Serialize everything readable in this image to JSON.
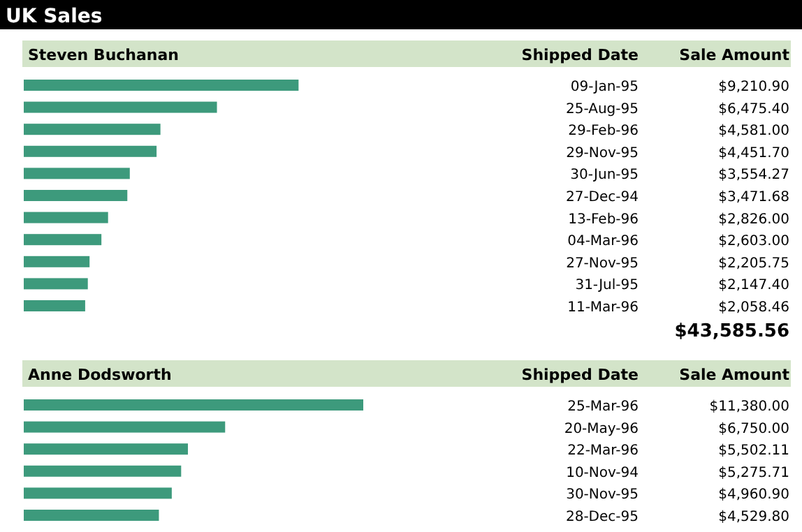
{
  "chart_data": [
    {
      "type": "bar",
      "orientation": "horizontal",
      "title": "UK Sales",
      "subtitle": "Steven Buchanan",
      "ylabel": "Shipped Date",
      "xlabel": "Sale Amount",
      "color": "#3d9a7c",
      "data_labels": false,
      "categories": [
        "09-Jan-95",
        "25-Aug-95",
        "29-Feb-96",
        "29-Nov-95",
        "30-Jun-95",
        "27-Dec-94",
        "13-Feb-96",
        "04-Mar-96",
        "27-Nov-95",
        "31-Jul-95",
        "11-Mar-96"
      ],
      "values": [
        9210.9,
        6475.4,
        4581.0,
        4451.7,
        3554.27,
        3471.68,
        2826.0,
        2603.0,
        2205.75,
        2147.4,
        2058.46
      ],
      "value_labels": [
        "$9,210.90",
        "$6,475.40",
        "$4,581.00",
        "$4,451.70",
        "$3,554.27",
        "$3,471.68",
        "$2,826.00",
        "$2,603.00",
        "$2,205.75",
        "$2,147.40",
        "$2,058.46"
      ],
      "annotations": [
        "$43,585.56"
      ]
    },
    {
      "type": "bar",
      "orientation": "horizontal",
      "subtitle": "Anne Dodsworth",
      "ylabel": "Shipped Date",
      "xlabel": "Sale Amount",
      "color": "#3d9a7c",
      "data_labels": false,
      "categories": [
        "25-Mar-96",
        "20-May-96",
        "22-Mar-96",
        "10-Nov-94",
        "30-Nov-95",
        "28-Dec-95"
      ],
      "values": [
        11380.0,
        6750.0,
        5502.11,
        5275.71,
        4960.9,
        4529.8
      ],
      "value_labels": [
        "$11,380.00",
        "$6,750.00",
        "$5,502.11",
        "$5,275.71",
        "$4,960.90",
        "$4,529.80"
      ]
    }
  ]
}
